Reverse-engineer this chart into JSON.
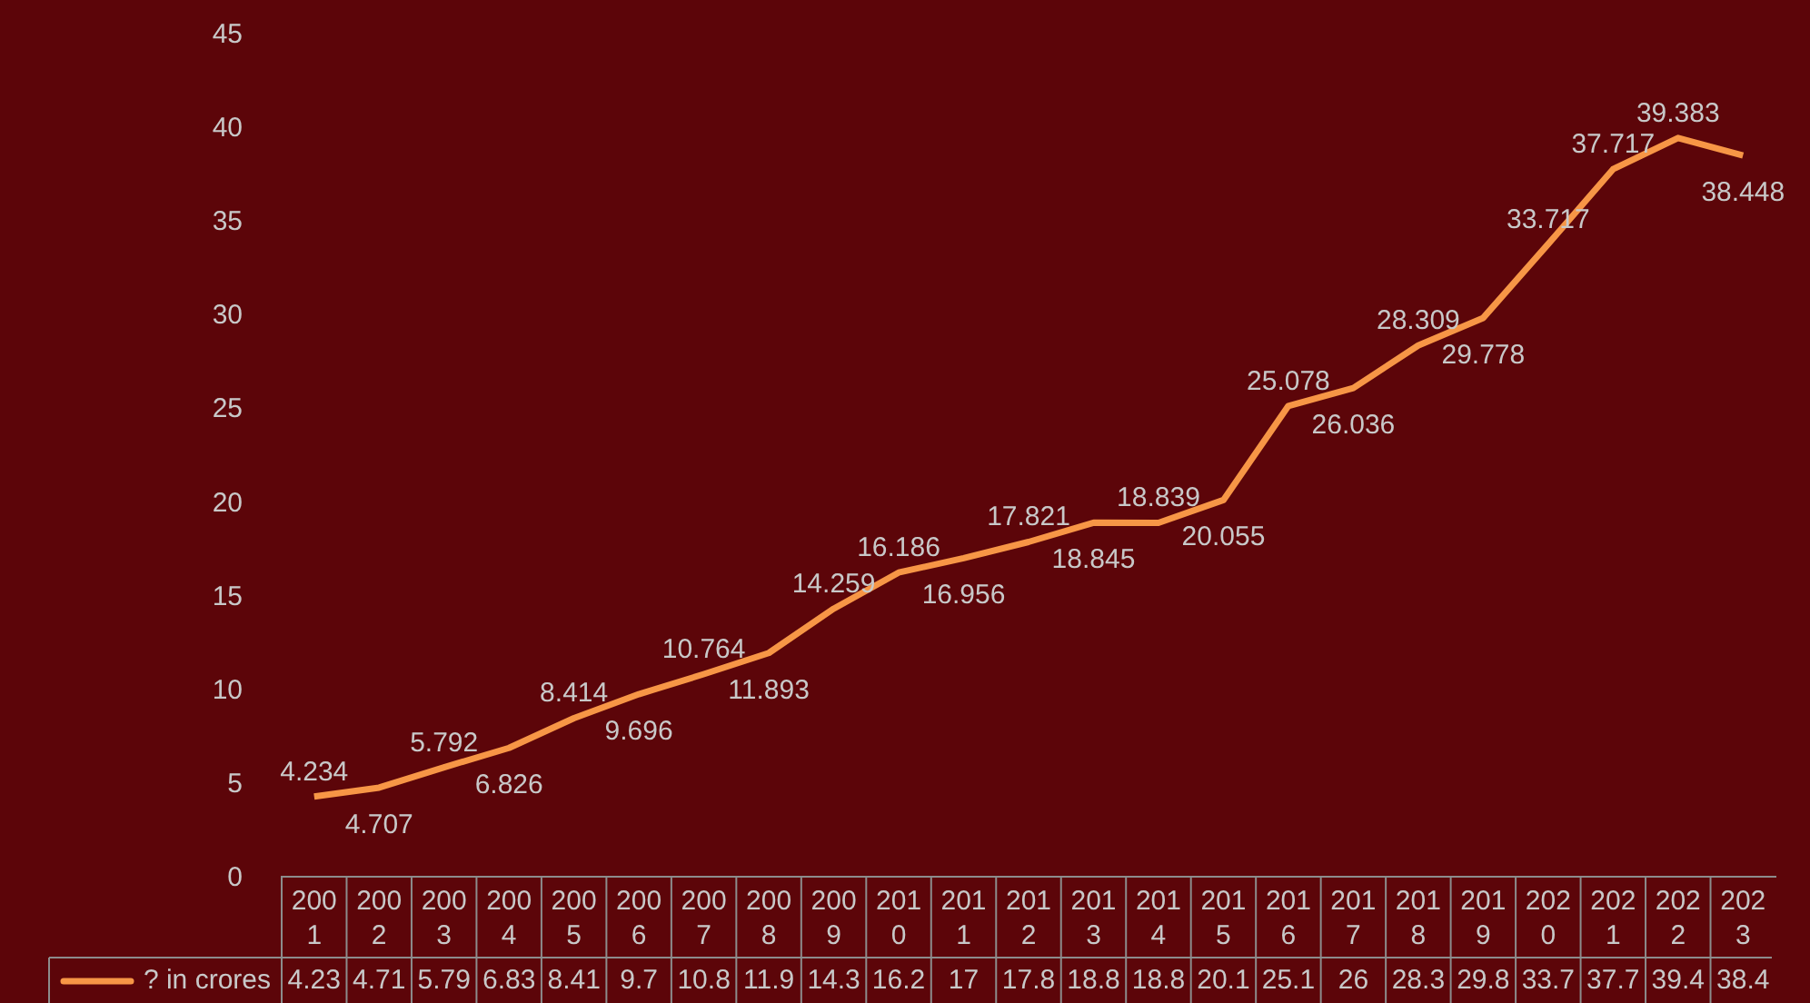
{
  "chart_data": {
    "type": "line",
    "categories": [
      "2001",
      "2002",
      "2003",
      "2004",
      "2005",
      "2006",
      "2007",
      "2008",
      "2009",
      "2010",
      "2011",
      "2012",
      "2013",
      "2014",
      "2015",
      "2016",
      "2017",
      "2018",
      "2019",
      "2020",
      "2021",
      "2022",
      "2023"
    ],
    "series": [
      {
        "name": "? in crores",
        "color": "#f79646",
        "values": [
          4.234,
          4.707,
          5.792,
          6.826,
          8.414,
          9.696,
          10.764,
          11.893,
          14.259,
          16.186,
          16.956,
          17.821,
          18.845,
          18.839,
          20.055,
          25.078,
          26.036,
          28.309,
          29.778,
          33.717,
          37.717,
          39.383,
          38.448
        ]
      }
    ],
    "annotations": [
      "4.23",
      "4.71",
      "5.79",
      "6.83",
      "8.41",
      "9.7",
      "10.8",
      "11.9",
      "14.3",
      "16.2",
      "17",
      "17.8",
      "18.8",
      "18.8",
      "20.1",
      "25.1",
      "26",
      "28.3",
      "29.8",
      "33.7",
      "37.7",
      "39.4",
      "38.4"
    ],
    "ylim": [
      0,
      45
    ],
    "yticks": [
      0,
      5,
      10,
      15,
      20,
      25,
      30,
      35,
      40,
      45
    ],
    "data_labels": true,
    "legend": "bottom"
  }
}
